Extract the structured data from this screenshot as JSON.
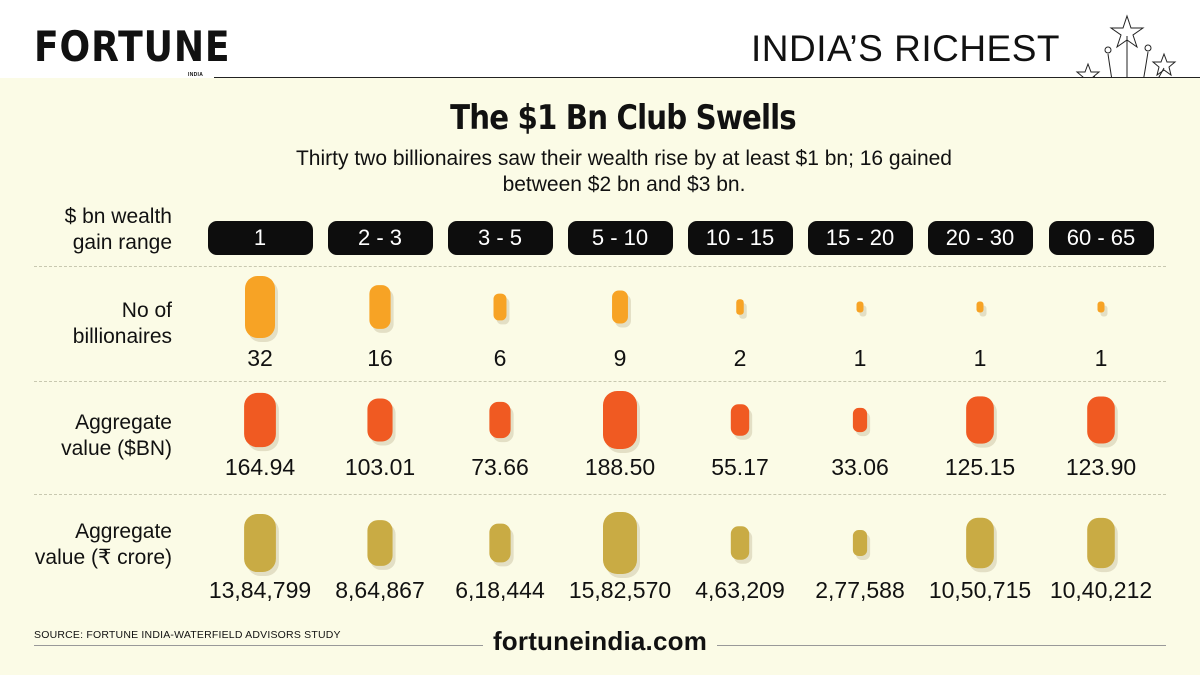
{
  "brand": {
    "name": "FORTUNE",
    "edition": "INDIA"
  },
  "section": "INDIA’S RICHEST",
  "title": "The $1 Bn Club Swells",
  "subtitle": "Thirty two billionaires saw their wealth rise by at least $1 bn; 16 gained between $2 bn and $3 bn.",
  "row_labels": {
    "range": [
      "$ bn wealth",
      "gain range"
    ],
    "count": [
      "No of",
      "billionaires"
    ],
    "usd": [
      "Aggregate",
      "value ($BN)"
    ],
    "inr": [
      "Aggregate",
      "value (₹ crore)"
    ]
  },
  "chart_data": {
    "type": "table",
    "categories": [
      "1",
      "2 - 3",
      "3 - 5",
      "5 - 10",
      "10 - 15",
      "15 - 20",
      "20 - 30",
      "60 - 65"
    ],
    "series": [
      {
        "name": "No of billionaires",
        "values": [
          32,
          16,
          6,
          9,
          2,
          1,
          1,
          1
        ],
        "labels": [
          "32",
          "16",
          "6",
          "9",
          "2",
          "1",
          "1",
          "1"
        ],
        "color": "#f7a325"
      },
      {
        "name": "Aggregate value ($BN)",
        "values": [
          164.94,
          103.01,
          73.66,
          188.5,
          55.17,
          33.06,
          125.15,
          123.9
        ],
        "labels": [
          "164.94",
          "103.01",
          "73.66",
          "188.50",
          "55.17",
          "33.06",
          "125.15",
          "123.90"
        ],
        "color": "#f05a22"
      },
      {
        "name": "Aggregate value (₹ crore)",
        "values": [
          1384799,
          864867,
          618444,
          1582570,
          463209,
          277588,
          1050715,
          1040212
        ],
        "labels": [
          "13,84,799",
          "8,64,867",
          "6,18,444",
          "15,82,570",
          "4,63,209",
          "2,77,588",
          "10,50,715",
          "10,40,212"
        ],
        "color": "#c9ab44"
      }
    ]
  },
  "source": "SOURCE: FORTUNE INDIA-WATERFIELD ADVISORS STUDY",
  "footer_url": "fortuneindia.com",
  "colors": {
    "panel": "#fbfbe6",
    "pill": "#0d0d0d",
    "shadow": "#d9d3b6"
  }
}
